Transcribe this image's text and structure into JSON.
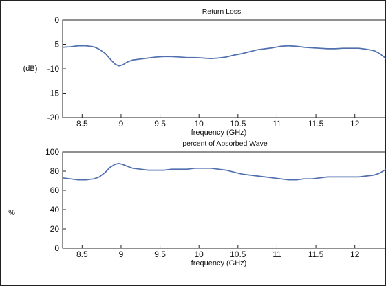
{
  "chart_data": [
    {
      "type": "line",
      "title": "Return Loss",
      "xlabel": "frequency (GHz)",
      "ylabel": "(dB)",
      "xlim": [
        8.25,
        12.4
      ],
      "ylim": [
        -20,
        0
      ],
      "xticks": [
        "8.5",
        "9",
        "9.5",
        "10",
        "10.5",
        "11",
        "11.5",
        "12"
      ],
      "yticks": [
        "0",
        "-5",
        "-10",
        "-15",
        "-20"
      ],
      "grid": false,
      "color": "#4f6fae",
      "x": [
        8.25,
        8.35,
        8.45,
        8.55,
        8.65,
        8.72,
        8.8,
        8.86,
        8.92,
        8.97,
        9.02,
        9.08,
        9.15,
        9.25,
        9.35,
        9.45,
        9.55,
        9.65,
        9.75,
        9.85,
        9.95,
        10.05,
        10.15,
        10.25,
        10.35,
        10.45,
        10.55,
        10.65,
        10.75,
        10.85,
        10.95,
        11.05,
        11.15,
        11.25,
        11.35,
        11.45,
        11.55,
        11.65,
        11.75,
        11.85,
        11.95,
        12.05,
        12.15,
        12.25,
        12.32,
        12.4
      ],
      "y": [
        -5.6,
        -5.5,
        -5.3,
        -5.3,
        -5.5,
        -6.0,
        -6.9,
        -8.0,
        -9.0,
        -9.4,
        -9.2,
        -8.6,
        -8.2,
        -8.0,
        -7.8,
        -7.6,
        -7.5,
        -7.5,
        -7.6,
        -7.7,
        -7.7,
        -7.8,
        -7.9,
        -7.8,
        -7.6,
        -7.2,
        -6.9,
        -6.5,
        -6.1,
        -5.9,
        -5.7,
        -5.4,
        -5.3,
        -5.4,
        -5.6,
        -5.7,
        -5.8,
        -5.9,
        -5.9,
        -5.8,
        -5.8,
        -5.8,
        -6.0,
        -6.3,
        -6.9,
        -7.9
      ]
    },
    {
      "type": "line",
      "title": "percent of Absorbed Wave",
      "xlabel": "frequency (GHz)",
      "ylabel": "%",
      "xlim": [
        8.25,
        12.4
      ],
      "ylim": [
        0,
        100
      ],
      "xticks": [
        "8.5",
        "9",
        "9.5",
        "10",
        "10.5",
        "11",
        "11.5",
        "12"
      ],
      "yticks": [
        "100",
        "80",
        "60",
        "40",
        "20",
        "0"
      ],
      "grid": false,
      "color": "#4f6fae",
      "x": [
        8.25,
        8.35,
        8.45,
        8.55,
        8.65,
        8.72,
        8.8,
        8.86,
        8.92,
        8.97,
        9.02,
        9.08,
        9.15,
        9.25,
        9.35,
        9.45,
        9.55,
        9.65,
        9.75,
        9.85,
        9.95,
        10.05,
        10.15,
        10.25,
        10.35,
        10.45,
        10.55,
        10.65,
        10.75,
        10.85,
        10.95,
        11.05,
        11.15,
        11.25,
        11.35,
        11.45,
        11.55,
        11.65,
        11.75,
        11.85,
        11.95,
        12.05,
        12.15,
        12.25,
        12.32,
        12.4
      ],
      "y": [
        73,
        72,
        71,
        71,
        72,
        74,
        79,
        84,
        87,
        88,
        87,
        85,
        83,
        82,
        81,
        81,
        81,
        82,
        82,
        82,
        83,
        83,
        83,
        82,
        81,
        79,
        77,
        76,
        75,
        74,
        73,
        72,
        71,
        71,
        72,
        72,
        73,
        74,
        74,
        74,
        74,
        74,
        75,
        76,
        78,
        82
      ]
    }
  ]
}
